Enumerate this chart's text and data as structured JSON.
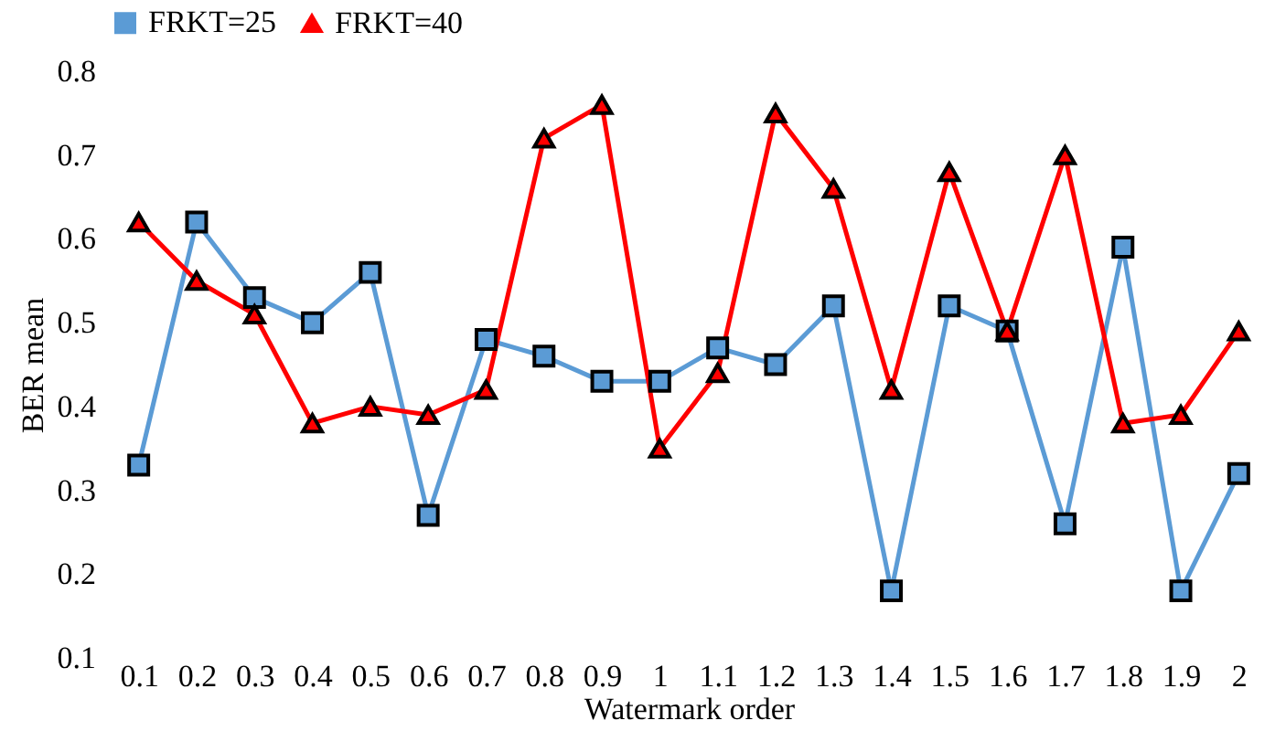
{
  "chart_data": {
    "type": "line",
    "xlabel": "Watermark order",
    "ylabel": "BER mean",
    "categories": [
      "0.1",
      "0.2",
      "0.3",
      "0.4",
      "0.5",
      "0.6",
      "0.7",
      "0.8",
      "0.9",
      "1",
      "1.1",
      "1.2",
      "1.3",
      "1.4",
      "1.5",
      "1.6",
      "1.7",
      "1.8",
      "1.9",
      "2"
    ],
    "series": [
      {
        "name": "FRKT=25",
        "color": "#5b9bd5",
        "marker": "square",
        "values": [
          0.33,
          0.62,
          0.53,
          0.5,
          0.56,
          0.27,
          0.48,
          0.46,
          0.43,
          0.43,
          0.47,
          0.45,
          0.52,
          0.18,
          0.52,
          0.49,
          0.26,
          0.59,
          0.18,
          0.32
        ]
      },
      {
        "name": "FRKT=40",
        "color": "#ff0000",
        "marker": "triangle",
        "values": [
          0.62,
          0.55,
          0.51,
          0.38,
          0.4,
          0.39,
          0.42,
          0.72,
          0.76,
          0.35,
          0.44,
          0.75,
          0.66,
          0.42,
          0.68,
          0.49,
          0.7,
          0.38,
          0.39,
          0.49
        ]
      }
    ],
    "ylim": [
      0.1,
      0.8
    ],
    "yticks": [
      0.1,
      0.2,
      0.3,
      0.4,
      0.5,
      0.6,
      0.7,
      0.8
    ],
    "grid": false,
    "legend": "top",
    "line_style": "solid"
  }
}
